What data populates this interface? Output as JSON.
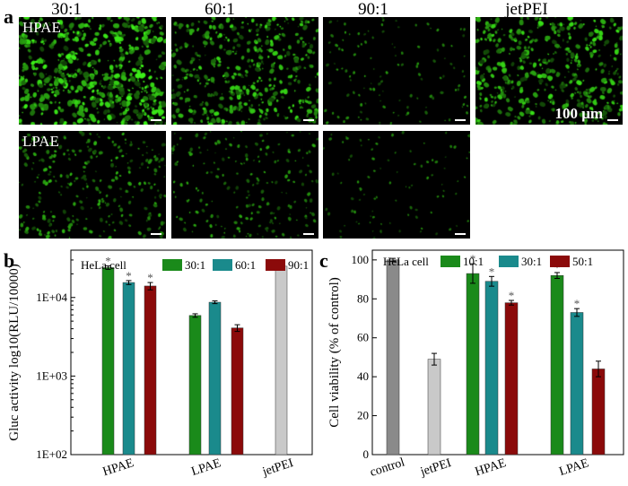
{
  "panel_a": {
    "letter": "a",
    "columns": [
      "30:1",
      "60:1",
      "90:1",
      "jetPEI"
    ],
    "rows": [
      "HPAE",
      "LPAE"
    ],
    "scale_label": "100 μm",
    "brightness": [
      [
        0.95,
        0.7,
        0.15,
        0.75
      ],
      [
        0.4,
        0.28,
        0.1,
        null
      ]
    ]
  },
  "chart_data": [
    {
      "panel": "b",
      "type": "bar",
      "ylabel": "Gluc activity log10(RLU/10000)",
      "yscale": "log",
      "ylim": [
        100,
        40000
      ],
      "yticks": [
        "1E+02",
        "1E+03",
        "1E+04"
      ],
      "inset_label": "HeLa cell",
      "categories": [
        "HPAE",
        "LPAE",
        "jetPEI"
      ],
      "series": [
        {
          "name": "30:1",
          "color": "#1a8a1a",
          "values": [
            24000,
            5900,
            null
          ],
          "errors": [
            1200,
            300,
            null
          ],
          "sig": [
            "*",
            "",
            ""
          ]
        },
        {
          "name": "60:1",
          "color": "#1a8a8c",
          "values": [
            15500,
            8700,
            null
          ],
          "errors": [
            900,
            350,
            null
          ],
          "sig": [
            "*",
            "",
            ""
          ]
        },
        {
          "name": "90:1",
          "color": "#8b0a0a",
          "values": [
            14000,
            4100,
            null
          ],
          "errors": [
            1500,
            400,
            null
          ],
          "sig": [
            "*",
            "",
            ""
          ]
        },
        {
          "name": "",
          "color": "#c9c9c9",
          "values": [
            null,
            null,
            25000
          ],
          "errors": [
            null,
            null,
            700
          ],
          "sig": [
            "",
            "",
            ""
          ]
        }
      ]
    },
    {
      "panel": "c",
      "type": "bar",
      "ylabel": "Cell viability (% of control)",
      "ylim": [
        0,
        105
      ],
      "yticks": [
        0,
        20,
        40,
        60,
        80,
        100
      ],
      "inset_label": "HeLa cell",
      "categories": [
        "control",
        "jetPEI",
        "HPAE",
        "LPAE"
      ],
      "series": [
        {
          "name": "",
          "color": "#8a8a8a",
          "values": [
            100,
            null,
            null,
            null
          ],
          "errors": [
            0.8,
            null,
            null,
            null
          ],
          "sig": [
            "",
            "",
            "",
            ""
          ]
        },
        {
          "name": "",
          "color": "#c9c9c9",
          "values": [
            null,
            49,
            null,
            null
          ],
          "errors": [
            null,
            3,
            null,
            null
          ],
          "sig": [
            "",
            "",
            "",
            ""
          ]
        },
        {
          "name": "10:1",
          "color": "#1a8a1a",
          "values": [
            null,
            null,
            93,
            92
          ],
          "errors": [
            null,
            null,
            5,
            1.5
          ],
          "sig": [
            "",
            "",
            "*",
            "*"
          ]
        },
        {
          "name": "30:1",
          "color": "#1a8a8c",
          "values": [
            null,
            null,
            89,
            73
          ],
          "errors": [
            null,
            null,
            2.5,
            2
          ],
          "sig": [
            "",
            "",
            "*",
            "*"
          ]
        },
        {
          "name": "50:1",
          "color": "#8b0a0a",
          "values": [
            null,
            null,
            78,
            44
          ],
          "errors": [
            null,
            null,
            1.2,
            4
          ],
          "sig": [
            "",
            "",
            "*",
            ""
          ]
        }
      ]
    }
  ],
  "panel_b_letter": "b",
  "panel_c_letter": "c"
}
